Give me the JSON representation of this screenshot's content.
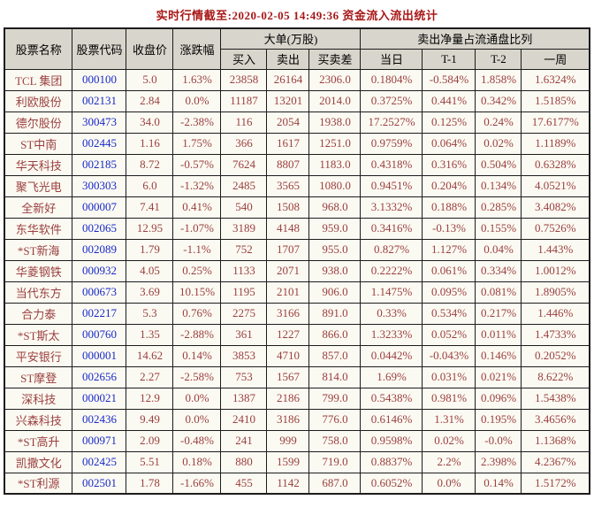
{
  "title": "实时行情截至:2020-02-05 14:49:36 资金流入流出统计",
  "colors": {
    "page_bg": "#ffffff",
    "cell_bg": "#fbfaf2",
    "header_bg": "#d8d5cc",
    "border": "#1c1c1c",
    "title_red": "#a81717",
    "name_red": "#9a3f3f",
    "code_blue": "#1728c8",
    "value_red": "#9a3f3f"
  },
  "table": {
    "headers": {
      "name": "股票名称",
      "code": "股票代码",
      "close": "收盘价",
      "change": "涨跌幅",
      "big_orders_group": "大单(万股)",
      "net_sell_group": "卖出净量占流通盘比列",
      "buy": "买入",
      "sell": "卖出",
      "diff": "买卖差",
      "day": "当日",
      "t1": "T-1",
      "t2": "T-2",
      "week": "一周"
    },
    "column_keys": [
      "name",
      "code",
      "close",
      "change",
      "buy",
      "sell",
      "diff",
      "day",
      "t1",
      "t2",
      "week"
    ],
    "rows": [
      {
        "name": "TCL 集团",
        "code": "000100",
        "close": "5.0",
        "change": "1.63%",
        "buy": "23858",
        "sell": "26164",
        "diff": "2306.0",
        "day": "0.1804%",
        "t1": "-0.584%",
        "t2": "1.858%",
        "week": "1.6324%"
      },
      {
        "name": "利欧股份",
        "code": "002131",
        "close": "2.84",
        "change": "0.0%",
        "buy": "11187",
        "sell": "13201",
        "diff": "2014.0",
        "day": "0.3725%",
        "t1": "0.441%",
        "t2": "0.342%",
        "week": "1.5185%"
      },
      {
        "name": "德尔股份",
        "code": "300473",
        "close": "34.0",
        "change": "-2.38%",
        "buy": "116",
        "sell": "2054",
        "diff": "1938.0",
        "day": "17.2527%",
        "t1": "0.125%",
        "t2": "0.24%",
        "week": "17.6177%"
      },
      {
        "name": "ST中南",
        "code": "002445",
        "close": "1.16",
        "change": "1.75%",
        "buy": "366",
        "sell": "1617",
        "diff": "1251.0",
        "day": "0.9759%",
        "t1": "0.064%",
        "t2": "0.02%",
        "week": "1.1189%"
      },
      {
        "name": "华天科技",
        "code": "002185",
        "close": "8.72",
        "change": "-0.57%",
        "buy": "7624",
        "sell": "8807",
        "diff": "1183.0",
        "day": "0.4318%",
        "t1": "0.316%",
        "t2": "0.504%",
        "week": "0.6328%"
      },
      {
        "name": "聚飞光电",
        "code": "300303",
        "close": "6.0",
        "change": "-1.32%",
        "buy": "2485",
        "sell": "3565",
        "diff": "1080.0",
        "day": "0.9451%",
        "t1": "0.204%",
        "t2": "0.134%",
        "week": "4.0521%"
      },
      {
        "name": "全新好",
        "code": "000007",
        "close": "7.41",
        "change": "0.41%",
        "buy": "540",
        "sell": "1508",
        "diff": "968.0",
        "day": "3.1332%",
        "t1": "0.188%",
        "t2": "0.285%",
        "week": "3.4082%"
      },
      {
        "name": "东华软件",
        "code": "002065",
        "close": "12.95",
        "change": "-1.07%",
        "buy": "3189",
        "sell": "4148",
        "diff": "959.0",
        "day": "0.3416%",
        "t1": "-0.13%",
        "t2": "0.155%",
        "week": "0.7526%"
      },
      {
        "name": "*ST新海",
        "code": "002089",
        "close": "1.79",
        "change": "-1.1%",
        "buy": "752",
        "sell": "1707",
        "diff": "955.0",
        "day": "0.827%",
        "t1": "1.127%",
        "t2": "0.04%",
        "week": "1.443%"
      },
      {
        "name": "华菱钢铁",
        "code": "000932",
        "close": "4.05",
        "change": "0.25%",
        "buy": "1133",
        "sell": "2071",
        "diff": "938.0",
        "day": "0.2222%",
        "t1": "0.061%",
        "t2": "0.334%",
        "week": "1.0012%"
      },
      {
        "name": "当代东方",
        "code": "000673",
        "close": "3.69",
        "change": "10.15%",
        "buy": "1195",
        "sell": "2101",
        "diff": "906.0",
        "day": "1.1475%",
        "t1": "0.095%",
        "t2": "0.081%",
        "week": "1.8905%"
      },
      {
        "name": "合力泰",
        "code": "002217",
        "close": "5.3",
        "change": "0.76%",
        "buy": "2275",
        "sell": "3166",
        "diff": "891.0",
        "day": "0.33%",
        "t1": "0.534%",
        "t2": "0.217%",
        "week": "1.446%"
      },
      {
        "name": "*ST斯太",
        "code": "000760",
        "close": "1.35",
        "change": "-2.88%",
        "buy": "361",
        "sell": "1227",
        "diff": "866.0",
        "day": "1.3233%",
        "t1": "0.052%",
        "t2": "0.011%",
        "week": "1.4733%"
      },
      {
        "name": "平安银行",
        "code": "000001",
        "close": "14.62",
        "change": "0.14%",
        "buy": "3853",
        "sell": "4710",
        "diff": "857.0",
        "day": "0.0442%",
        "t1": "-0.043%",
        "t2": "0.146%",
        "week": "0.2052%"
      },
      {
        "name": "ST摩登",
        "code": "002656",
        "close": "2.27",
        "change": "-2.58%",
        "buy": "753",
        "sell": "1567",
        "diff": "814.0",
        "day": "1.69%",
        "t1": "0.031%",
        "t2": "0.021%",
        "week": "8.622%"
      },
      {
        "name": "深科技",
        "code": "000021",
        "close": "12.9",
        "change": "0.0%",
        "buy": "1387",
        "sell": "2186",
        "diff": "799.0",
        "day": "0.5438%",
        "t1": "0.981%",
        "t2": "0.096%",
        "week": "1.5438%"
      },
      {
        "name": "兴森科技",
        "code": "002436",
        "close": "9.49",
        "change": "0.0%",
        "buy": "2410",
        "sell": "3186",
        "diff": "776.0",
        "day": "0.6146%",
        "t1": "1.31%",
        "t2": "0.195%",
        "week": "3.4656%"
      },
      {
        "name": "*ST高升",
        "code": "000971",
        "close": "2.09",
        "change": "-0.48%",
        "buy": "241",
        "sell": "999",
        "diff": "758.0",
        "day": "0.9598%",
        "t1": "0.02%",
        "t2": "-0.0%",
        "week": "1.1368%"
      },
      {
        "name": "凯撒文化",
        "code": "002425",
        "close": "5.51",
        "change": "0.18%",
        "buy": "880",
        "sell": "1599",
        "diff": "719.0",
        "day": "0.8837%",
        "t1": "2.2%",
        "t2": "2.398%",
        "week": "4.2367%"
      },
      {
        "name": "*ST利源",
        "code": "002501",
        "close": "1.78",
        "change": "-1.66%",
        "buy": "455",
        "sell": "1142",
        "diff": "687.0",
        "day": "0.6052%",
        "t1": "0.0%",
        "t2": "0.14%",
        "week": "1.5172%"
      }
    ]
  }
}
